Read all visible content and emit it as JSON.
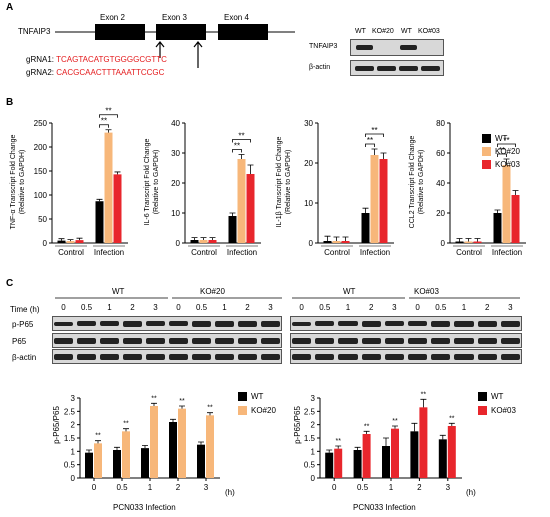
{
  "panelA": {
    "letter": "A",
    "gene": "TNFAIP3",
    "exons": [
      "Exon 2",
      "Exon 3",
      "Exon 4"
    ],
    "grna1_label": "gRNA1:",
    "grna1_seq": "TCAGTACATGTGGGGCGTTC",
    "grna2_label": "gRNA2:",
    "grna2_seq": "CACGCAACTTTAAATTCCGC",
    "blot_lanes": [
      "WT",
      "KO#20",
      "WT",
      "KO#03"
    ],
    "blot_rows": [
      "TNFAIP3",
      "β-actin"
    ]
  },
  "panelB": {
    "letter": "B",
    "legend": [
      "WT",
      "KO#20",
      "KO#03"
    ],
    "sig": "**"
  },
  "panelC": {
    "letter": "C",
    "time_label": "Time (h)",
    "times": [
      "0",
      "0.5",
      "1",
      "2",
      "3"
    ],
    "group_left": [
      "WT",
      "KO#20"
    ],
    "group_right": [
      "WT",
      "KO#03"
    ],
    "blot_rows": [
      "p-P65",
      "P65",
      "β-actin"
    ],
    "legend_left": [
      "WT",
      "KO#20"
    ],
    "legend_right": [
      "WT",
      "KO#03"
    ],
    "sig": "**"
  },
  "colors": {
    "wt": "#000000",
    "ko20": "#f7b77a",
    "ko03": "#e8262c",
    "grna": "#e41a1c"
  },
  "chart_data": [
    {
      "type": "bar",
      "id": "tnfa",
      "ylabel": "TNF-α Transcript Fold Change\n(Relative to GAPDH)",
      "categories": [
        "Control",
        "Infection"
      ],
      "yticks": [
        0,
        50,
        100,
        150,
        200,
        250
      ],
      "ylim": [
        0,
        250
      ],
      "series": [
        {
          "name": "WT",
          "values": [
            5,
            87
          ],
          "err": [
            4,
            4
          ]
        },
        {
          "name": "KO#20",
          "values": [
            4,
            230
          ],
          "err": [
            3,
            6
          ]
        },
        {
          "name": "KO#03",
          "values": [
            6,
            143
          ],
          "err": [
            4,
            5
          ]
        }
      ]
    },
    {
      "type": "bar",
      "id": "il6",
      "ylabel": "IL-6 Transcript Fold Change\n(Relative to GAPDH)",
      "categories": [
        "Control",
        "Infection"
      ],
      "yticks": [
        0,
        10,
        20,
        30,
        40
      ],
      "ylim": [
        0,
        40
      ],
      "series": [
        {
          "name": "WT",
          "values": [
            1,
            9
          ],
          "err": [
            0.8,
            1
          ]
        },
        {
          "name": "KO#20",
          "values": [
            1,
            28
          ],
          "err": [
            0.8,
            1.5
          ]
        },
        {
          "name": "KO#03",
          "values": [
            1,
            23
          ],
          "err": [
            0.8,
            3
          ]
        }
      ]
    },
    {
      "type": "bar",
      "id": "il1b",
      "ylabel": "IL-1β Transcript Fold Change\n(Relative to GAPDH)",
      "categories": [
        "Control",
        "Infection"
      ],
      "yticks": [
        0,
        10,
        20,
        30
      ],
      "ylim": [
        0,
        30
      ],
      "series": [
        {
          "name": "WT",
          "values": [
            0.5,
            7.5
          ],
          "err": [
            1.2,
            1.2
          ]
        },
        {
          "name": "KO#20",
          "values": [
            0.5,
            22
          ],
          "err": [
            1,
            1.5
          ]
        },
        {
          "name": "KO#03",
          "values": [
            0.5,
            21
          ],
          "err": [
            1,
            1.5
          ]
        }
      ]
    },
    {
      "type": "bar",
      "id": "ccl2",
      "ylabel": "CCL2 Transcript Fold Change\n(Relative to GAPDH)",
      "categories": [
        "Control",
        "Infection"
      ],
      "yticks": [
        0,
        20,
        40,
        60,
        80
      ],
      "ylim": [
        0,
        80
      ],
      "series": [
        {
          "name": "WT",
          "values": [
            1,
            20
          ],
          "err": [
            2,
            2
          ]
        },
        {
          "name": "KO#20",
          "values": [
            1,
            52
          ],
          "err": [
            2,
            4
          ]
        },
        {
          "name": "KO#03",
          "values": [
            1,
            32
          ],
          "err": [
            2,
            3
          ]
        }
      ]
    },
    {
      "type": "bar",
      "id": "pp65_ko20",
      "ylabel": "p-P65/P65",
      "xlabel": "PCN033 Infection",
      "xunit": "(h)",
      "categories": [
        "0",
        "0.5",
        "1",
        "2",
        "3"
      ],
      "yticks": [
        0,
        0.5,
        1,
        1.5,
        2,
        2.5,
        3
      ],
      "ylim": [
        0,
        3
      ],
      "series": [
        {
          "name": "WT",
          "values": [
            0.95,
            1.05,
            1.12,
            2.1,
            1.25
          ],
          "err": [
            0.1,
            0.1,
            0.1,
            0.1,
            0.1
          ]
        },
        {
          "name": "KO#20",
          "values": [
            1.3,
            1.75,
            2.7,
            2.6,
            2.35
          ],
          "err": [
            0.1,
            0.1,
            0.1,
            0.1,
            0.1
          ]
        }
      ]
    },
    {
      "type": "bar",
      "id": "pp65_ko03",
      "ylabel": "p-P65/P65",
      "xlabel": "PCN033 Infection",
      "xunit": "(h)",
      "categories": [
        "0",
        "0.5",
        "1",
        "2",
        "3"
      ],
      "yticks": [
        0,
        0.5,
        1,
        1.5,
        2,
        2.5,
        3
      ],
      "ylim": [
        0,
        3
      ],
      "series": [
        {
          "name": "WT",
          "values": [
            0.95,
            1.05,
            1.2,
            1.75,
            1.45
          ],
          "err": [
            0.1,
            0.1,
            0.3,
            0.3,
            0.15
          ]
        },
        {
          "name": "KO#03",
          "values": [
            1.1,
            1.65,
            1.85,
            2.65,
            1.95
          ],
          "err": [
            0.1,
            0.1,
            0.1,
            0.3,
            0.1
          ]
        }
      ]
    }
  ]
}
